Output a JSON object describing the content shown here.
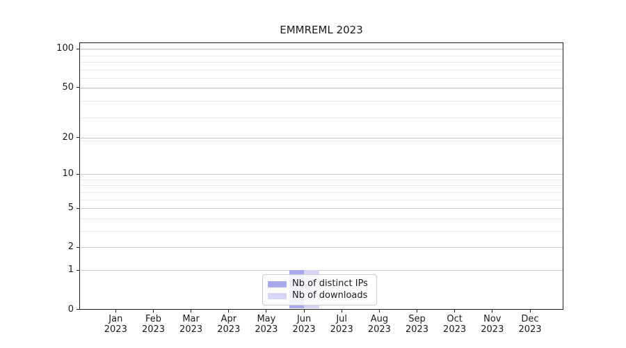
{
  "chart_data": {
    "type": "bar",
    "title": "EMMREML 2023",
    "categories": [
      "Jan 2023",
      "Feb 2023",
      "Mar 2023",
      "Apr 2023",
      "May 2023",
      "Jun 2023",
      "Jul 2023",
      "Aug 2023",
      "Sep 2023",
      "Oct 2023",
      "Nov 2023",
      "Dec 2023"
    ],
    "series": [
      {
        "name": "Nb of distinct IPs",
        "color": "#a8a8ec",
        "values": [
          0,
          0,
          0,
          0,
          0,
          1,
          0,
          0,
          0,
          0,
          0,
          0
        ]
      },
      {
        "name": "Nb of downloads",
        "color": "#d6d6f4",
        "values": [
          0,
          0,
          0,
          0,
          0,
          1,
          0,
          0,
          0,
          0,
          0,
          0
        ]
      }
    ],
    "xlabel": "",
    "ylabel": "",
    "yscale": "log1p",
    "ylim": [
      0,
      112
    ],
    "yticks": [
      0,
      1,
      2,
      5,
      10,
      20,
      50,
      100
    ],
    "grid": "horizontal major+minor",
    "legend": {
      "position": "lower center inside",
      "entries": [
        "Nb of distinct IPs",
        "Nb of downloads"
      ]
    },
    "colors": {
      "axis": "#1a1a1a",
      "text": "#1a1a1a",
      "grid_major": "#c9c9c9",
      "grid_minor": "#e9e9e9",
      "legend_border": "#cccccc",
      "background": "#ffffff"
    }
  }
}
